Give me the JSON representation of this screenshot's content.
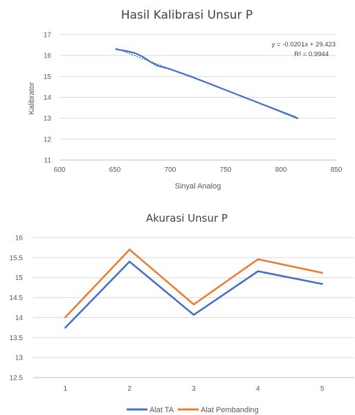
{
  "chart_data": [
    {
      "type": "line",
      "title": "Hasil Kalibrasi Unsur P",
      "xlabel": "Sinyal Analog",
      "ylabel": "Kalibrator",
      "xlim": [
        600,
        850
      ],
      "ylim": [
        11,
        17
      ],
      "x_ticks": [
        600,
        650,
        700,
        750,
        800,
        850
      ],
      "y_ticks": [
        11,
        12,
        13,
        14,
        15,
        16,
        17
      ],
      "grid": true,
      "series": [
        {
          "color": "#4472C4",
          "points": [
            [
              651,
              16.3
            ],
            [
              660,
              16.22
            ],
            [
              668,
              16.12
            ],
            [
              675,
              15.95
            ],
            [
              682,
              15.7
            ],
            [
              688,
              15.52
            ],
            [
              700,
              15.35
            ],
            [
              720,
              14.97
            ],
            [
              750,
              14.35
            ],
            [
              780,
              13.73
            ],
            [
              815,
              13.0
            ]
          ]
        }
      ],
      "trendline": {
        "color": "#4472C4",
        "style": "dotted",
        "x_range": [
          651,
          815
        ],
        "slope": -0.0201,
        "intercept": 29.423
      },
      "annotations": [
        "y = -0.0201x + 29.423",
        "R² = 0.9944"
      ]
    },
    {
      "type": "line",
      "title": "Akurasi Unsur P",
      "xlabel": "",
      "ylabel": "",
      "categories": [
        "1",
        "2",
        "3",
        "4",
        "5"
      ],
      "ylim": [
        12.5,
        16
      ],
      "y_ticks": [
        "12.5",
        "13",
        "13.5",
        "14",
        "14.5",
        "15",
        "15.5",
        "16"
      ],
      "grid": true,
      "legend": "bottom",
      "series": [
        {
          "name": "Alat TA",
          "color": "#4472C4",
          "values": [
            13.75,
            15.4,
            14.07,
            15.16,
            14.84
          ]
        },
        {
          "name": "Alat Pembanding",
          "color": "#ED7D31",
          "values": [
            14.01,
            15.7,
            14.33,
            15.46,
            15.12
          ]
        }
      ]
    }
  ]
}
